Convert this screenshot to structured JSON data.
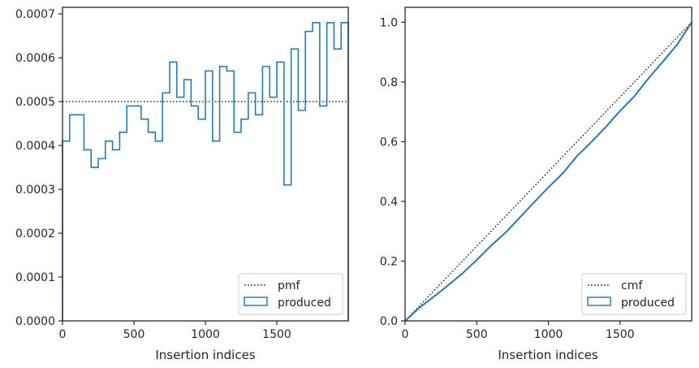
{
  "colors": {
    "series": "#2878b5",
    "reference": "#111111",
    "axes": "#262626",
    "legend_border": "#cccccc"
  },
  "chart_data": [
    {
      "type": "step",
      "xlabel": "Insertion indices",
      "ylabel": "",
      "xlim": [
        0,
        2000
      ],
      "ylim": [
        0,
        0.000715
      ],
      "xticks": [
        0,
        500,
        1000,
        1500
      ],
      "xtick_labels": [
        "0",
        "500",
        "1000",
        "1500"
      ],
      "yticks": [
        0,
        0.0001,
        0.0002,
        0.0003,
        0.0004,
        0.0005,
        0.0006,
        0.0007
      ],
      "ytick_labels": [
        "0.0000",
        "0.0001",
        "0.0002",
        "0.0003",
        "0.0004",
        "0.0005",
        "0.0006",
        "0.0007"
      ],
      "grid": false,
      "legend_position": "lower-right",
      "reference": {
        "name": "pmf",
        "style": "dotted",
        "y": 0.0005
      },
      "series": [
        {
          "name": "produced",
          "style": "step-histogram",
          "bin_width": 50,
          "values": [
            0.00041,
            0.00047,
            0.00047,
            0.00039,
            0.00035,
            0.00037,
            0.00041,
            0.00039,
            0.00043,
            0.00049,
            0.00049,
            0.00046,
            0.00043,
            0.00041,
            0.00052,
            0.00059,
            0.00051,
            0.00055,
            0.00049,
            0.00046,
            0.00057,
            0.00041,
            0.00058,
            0.00057,
            0.00043,
            0.00046,
            0.00052,
            0.00047,
            0.00058,
            0.00051,
            0.00059,
            0.00031,
            0.00062,
            0.00048,
            0.00066,
            0.00068,
            0.00049,
            0.00068,
            0.00062,
            0.00068
          ]
        }
      ]
    },
    {
      "type": "line",
      "xlabel": "Insertion indices",
      "ylabel": "",
      "xlim": [
        0,
        2000
      ],
      "ylim": [
        0,
        1.05
      ],
      "xticks": [
        0,
        500,
        1000,
        1500
      ],
      "xtick_labels": [
        "0",
        "500",
        "1000",
        "1500"
      ],
      "yticks": [
        0,
        0.2,
        0.4,
        0.6,
        0.8,
        1.0
      ],
      "ytick_labels": [
        "0.0",
        "0.2",
        "0.4",
        "0.6",
        "0.8",
        "1.0"
      ],
      "grid": false,
      "legend_position": "lower-right",
      "reference": {
        "name": "cmf",
        "style": "dotted",
        "points": [
          [
            0,
            0
          ],
          [
            2000,
            1.0
          ]
        ]
      },
      "series": [
        {
          "name": "produced",
          "style": "line",
          "x": [
            0,
            100,
            200,
            300,
            400,
            500,
            600,
            700,
            800,
            900,
            1000,
            1100,
            1200,
            1300,
            1400,
            1500,
            1600,
            1700,
            1800,
            1900,
            2000
          ],
          "y": [
            0,
            0.044,
            0.081,
            0.119,
            0.159,
            0.204,
            0.252,
            0.295,
            0.346,
            0.397,
            0.447,
            0.494,
            0.552,
            0.599,
            0.649,
            0.703,
            0.752,
            0.813,
            0.869,
            0.926,
            1.0
          ]
        }
      ]
    }
  ]
}
